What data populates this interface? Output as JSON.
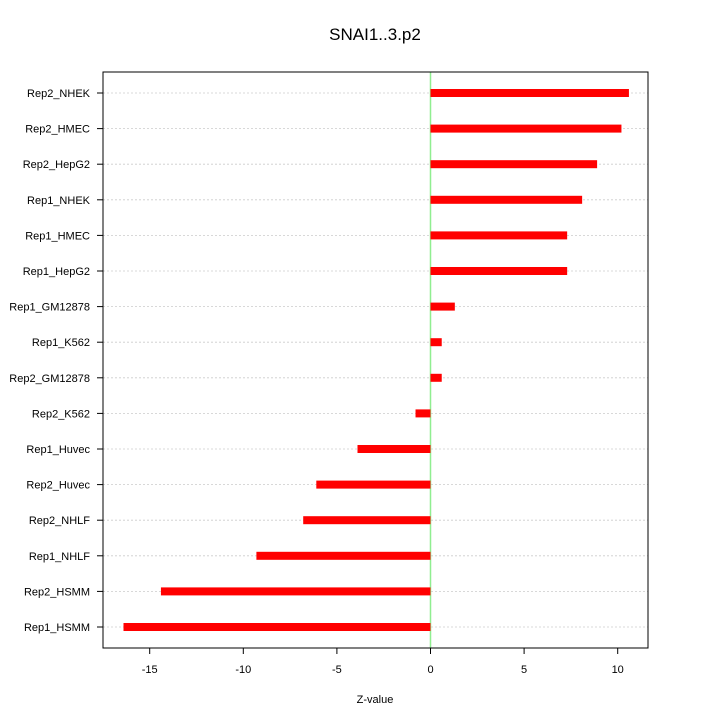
{
  "chart_data": {
    "type": "bar",
    "orientation": "horizontal",
    "title": "SNAI1..3.p2",
    "xlabel": "Z-value",
    "ylabel": "",
    "xlim": [
      -17.5,
      11.6
    ],
    "xticks": [
      -15,
      -10,
      -5,
      0,
      5,
      10
    ],
    "grid": "horizontal dotted",
    "reference_line": {
      "x": 0,
      "color": "#90ee90"
    },
    "bar_color": "#ff0000",
    "categories": [
      "Rep2_NHEK",
      "Rep2_HMEC",
      "Rep2_HepG2",
      "Rep1_NHEK",
      "Rep1_HMEC",
      "Rep1_HepG2",
      "Rep1_GM12878",
      "Rep1_K562",
      "Rep2_GM12878",
      "Rep2_K562",
      "Rep1_Huvec",
      "Rep2_Huvec",
      "Rep2_NHLF",
      "Rep1_NHLF",
      "Rep2_HSMM",
      "Rep1_HSMM"
    ],
    "values": [
      10.6,
      10.2,
      8.9,
      8.1,
      7.3,
      7.3,
      1.3,
      0.6,
      0.6,
      -0.8,
      -3.9,
      -6.1,
      -6.8,
      -9.3,
      -14.4,
      -16.4
    ]
  }
}
